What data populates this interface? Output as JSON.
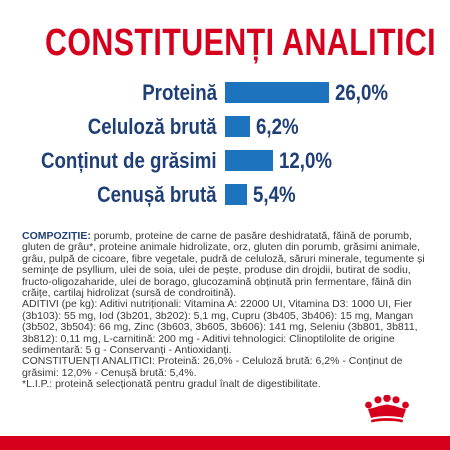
{
  "header": {
    "title": "CONSTITUENȚI ANALITICI"
  },
  "chart_data": {
    "type": "bar",
    "categories": [
      "Proteină",
      "Celuloză brută",
      "Conținut de grăsimi",
      "Cenușă brută"
    ],
    "values": [
      26.0,
      6.2,
      12.0,
      5.4
    ],
    "value_labels": [
      "26,0%",
      "6,2%",
      "12,0%",
      "5,4%"
    ],
    "title": "CONSTITUENȚI ANALITICI",
    "bar_color": "#1e73be"
  },
  "text": {
    "compozitie_label": "COMPOZIȚIE:",
    "compozitie": "porumb, proteine de carne de pasăre deshidratată, făină de porumb, gluten de grâu*, proteine animale hidrolizate, orz, gluten din porumb, grăsimi animale, grâu, pulpă de cicoare, fibre vegetale, pudră de celuloză, săruri minerale, tegumente și semințe de psyllium, ulei de soia, ulei de pește, produse din drojdii, butirat de sodiu, fructo-oligozaharide, ulei de borago, glucozamină obținută prin fermentare, făină din crăițe, cartilaj hidrolizat (sursă de condroitină).",
    "aditivi": "ADITIVI (pe kg): Aditivi nutriționali: Vitamina A: 22000 UI, Vitamina D3: 1000 UI, Fier (3b103): 55 mg, Iod (3b201, 3b202): 5,1 mg, Cupru (3b405, 3b406): 15 mg, Mangan (3b502, 3b504): 66 mg, Zinc (3b603, 3b605, 3b606): 141 mg, Seleniu (3b801, 3b811, 3b812): 0,11 mg, L-carnitină: 200 mg - Aditivi tehnologici: Clinoptilolite de origine sedimentară: 5 g - Conservanți - Antioxidanți.",
    "constituenti": "CONSTITUENȚI ANALITICI: Proteină: 26,0% - Celuloză brută: 6,2% - Conținut de grăsimi: 12,0% - Cenușă brută: 5,4%.",
    "footnote": "*L.I.P.: proteină selecționată pentru gradul înalt de digestibilitate."
  },
  "colors": {
    "brand_red": "#d6001c",
    "label_blue": "#1f3f77",
    "bar_blue": "#1e73be"
  },
  "logo": "royal-canin-crown-logo"
}
